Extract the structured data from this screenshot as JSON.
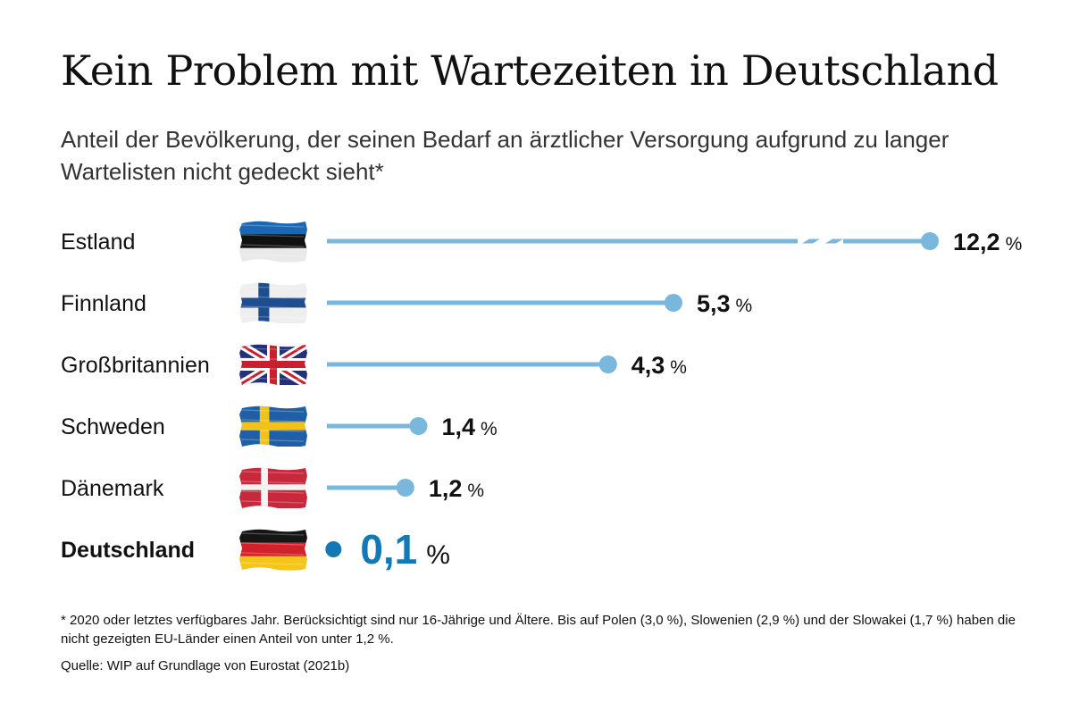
{
  "chart_data": {
    "type": "bar",
    "title": "Kein Problem mit Wartezeiten in Deutschland",
    "subtitle": "Anteil der Bevölkerung, der seinen Bedarf an ärztlicher Versorgung aufgrund zu langer Wartelisten nicht gedeckt sieht*",
    "unit": "%",
    "categories": [
      "Estland",
      "Finnland",
      "Großbritannien",
      "Schweden",
      "Dänemark",
      "Deutschland"
    ],
    "values": [
      12.2,
      5.3,
      4.3,
      1.4,
      1.2,
      0.1
    ],
    "value_labels": [
      "12,2",
      "5,3",
      "4,3",
      "1,4",
      "1,2",
      "0,1"
    ],
    "highlight": "Deutschland",
    "axis_break": "Estland",
    "flags": [
      "flag-estonia-icon",
      "flag-finland-icon",
      "flag-uk-icon",
      "flag-sweden-icon",
      "flag-denmark-icon",
      "flag-germany-icon"
    ],
    "colors": {
      "bar": "#7ab7dd",
      "highlight": "#1279b6",
      "text": "#111111"
    },
    "xlim": [
      0,
      6.5
    ],
    "grid": false
  },
  "footnote": "* 2020 oder letztes verfügbares Jahr. Berücksichtigt sind nur 16-Jährige und Ältere. Bis auf Polen (3,0 %), Slowenien (2,9 %) und der Slowakei (1,7 %) haben die nicht gezeigten EU-Länder einen Anteil von unter 1,2 %.",
  "source": "Quelle: WIP auf Grundlage von Eurostat (2021b)"
}
